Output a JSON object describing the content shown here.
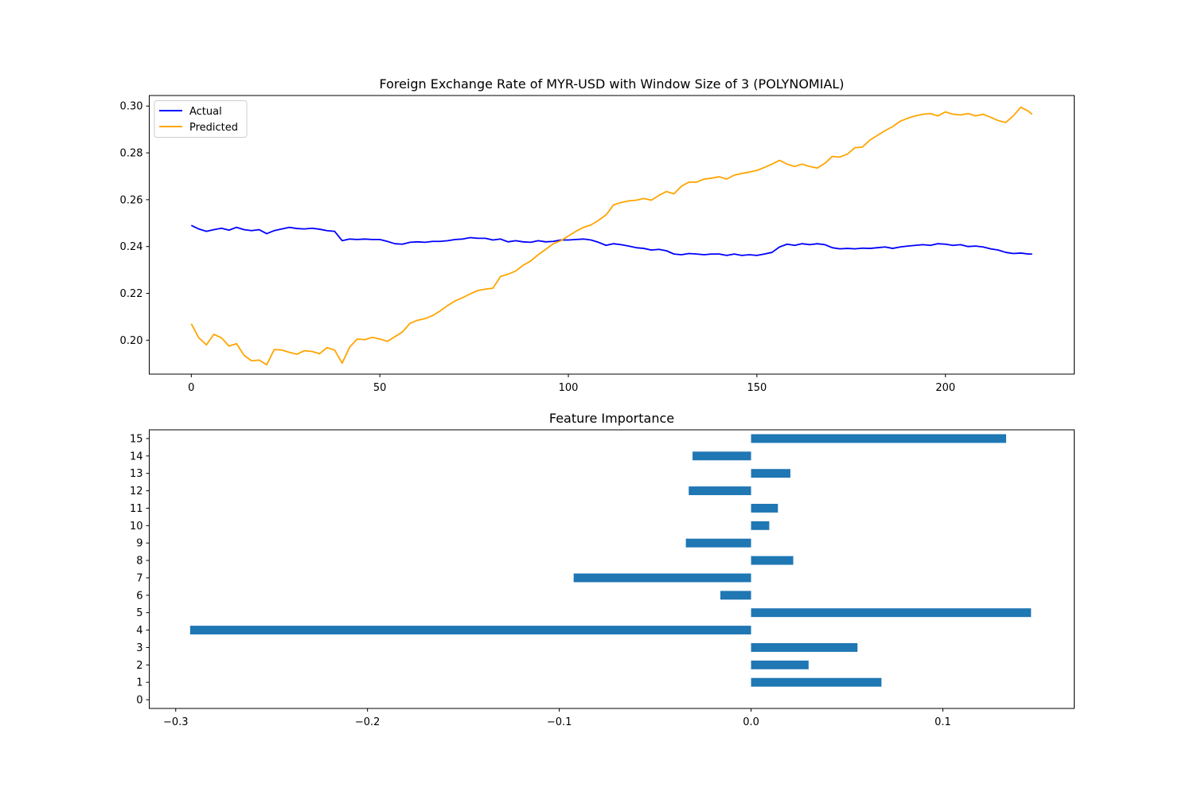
{
  "chart_data": [
    {
      "type": "line",
      "title": "Foreign Exchange Rate of MYR-USD with Window Size of 3 (POLYNOMIAL)",
      "xlabel": "",
      "ylabel": "",
      "xlim": [
        -11.15,
        234.15
      ],
      "ylim": [
        0.1855,
        0.3045
      ],
      "xticks": [
        0,
        50,
        100,
        150,
        200
      ],
      "xtick_labels": [
        "0",
        "50",
        "100",
        "150",
        "200"
      ],
      "yticks": [
        0.2,
        0.22,
        0.24,
        0.26,
        0.28,
        0.3
      ],
      "ytick_labels": [
        "0.20",
        "0.22",
        "0.24",
        "0.26",
        "0.28",
        "0.30"
      ],
      "legend_position": "top-left",
      "series": [
        {
          "name": "Actual",
          "color": "#0000ff",
          "x": [
            0,
            2,
            4,
            6,
            8,
            10,
            12,
            14,
            16,
            18,
            20,
            22,
            24,
            26,
            28,
            30,
            32,
            34,
            36,
            38,
            40,
            42,
            44,
            46,
            48,
            50,
            52,
            54,
            56,
            58,
            60,
            62,
            64,
            66,
            68,
            70,
            72,
            74,
            76,
            78,
            80,
            82,
            84,
            86,
            88,
            90,
            92,
            94,
            96,
            98,
            100,
            102,
            104,
            106,
            108,
            110,
            112,
            114,
            116,
            118,
            120,
            122,
            124,
            126,
            128,
            130,
            132,
            134,
            136,
            138,
            140,
            142,
            144,
            146,
            148,
            150,
            152,
            154,
            156,
            158,
            160,
            162,
            164,
            166,
            168,
            170,
            172,
            174,
            176,
            178,
            180,
            182,
            184,
            186,
            188,
            190,
            192,
            194,
            196,
            198,
            200,
            202,
            204,
            206,
            208,
            210,
            212,
            214,
            216,
            218,
            220,
            222,
            223
          ],
          "values": [
            0.249,
            0.2475,
            0.2465,
            0.2472,
            0.2478,
            0.247,
            0.2482,
            0.2472,
            0.2468,
            0.2472,
            0.2455,
            0.2468,
            0.2475,
            0.2482,
            0.2477,
            0.2475,
            0.2478,
            0.2474,
            0.2468,
            0.2465,
            0.2425,
            0.2432,
            0.243,
            0.2432,
            0.243,
            0.243,
            0.2422,
            0.2412,
            0.241,
            0.2418,
            0.242,
            0.2418,
            0.2422,
            0.2422,
            0.2425,
            0.243,
            0.2432,
            0.2438,
            0.2435,
            0.2435,
            0.2428,
            0.2432,
            0.242,
            0.2425,
            0.242,
            0.2418,
            0.2425,
            0.242,
            0.2422,
            0.2428,
            0.2428,
            0.243,
            0.2432,
            0.2428,
            0.2418,
            0.2405,
            0.2412,
            0.2408,
            0.2402,
            0.2395,
            0.2392,
            0.2385,
            0.2388,
            0.2382,
            0.2368,
            0.2365,
            0.237,
            0.2368,
            0.2365,
            0.2368,
            0.2368,
            0.2362,
            0.2368,
            0.2362,
            0.2365,
            0.2362,
            0.2368,
            0.2375,
            0.2398,
            0.241,
            0.2405,
            0.2412,
            0.2408,
            0.2412,
            0.2408,
            0.2395,
            0.239,
            0.2392,
            0.239,
            0.2393,
            0.2392,
            0.2395,
            0.2398,
            0.2392,
            0.2398,
            0.2402,
            0.2405,
            0.2408,
            0.2405,
            0.2412,
            0.241,
            0.2405,
            0.2408,
            0.24,
            0.2402,
            0.2398,
            0.239,
            0.2385,
            0.2375,
            0.237,
            0.2372,
            0.2368,
            0.2368
          ]
        },
        {
          "name": "Predicted",
          "color": "#ffa500",
          "x": [
            0,
            2,
            4,
            6,
            8,
            10,
            12,
            14,
            16,
            18,
            20,
            22,
            24,
            26,
            28,
            30,
            32,
            34,
            36,
            38,
            40,
            42,
            44,
            46,
            48,
            50,
            52,
            54,
            56,
            58,
            60,
            62,
            64,
            66,
            68,
            70,
            72,
            74,
            76,
            78,
            80,
            82,
            84,
            86,
            88,
            90,
            92,
            94,
            96,
            98,
            100,
            102,
            104,
            106,
            108,
            110,
            112,
            114,
            116,
            118,
            120,
            122,
            124,
            126,
            128,
            130,
            132,
            134,
            136,
            138,
            140,
            142,
            144,
            146,
            148,
            150,
            152,
            154,
            156,
            158,
            160,
            162,
            164,
            166,
            168,
            170,
            172,
            174,
            176,
            178,
            180,
            182,
            184,
            186,
            188,
            190,
            192,
            194,
            196,
            198,
            200,
            202,
            204,
            206,
            208,
            210,
            212,
            214,
            216,
            218,
            220,
            222,
            223
          ],
          "values": [
            0.207,
            0.201,
            0.198,
            0.2025,
            0.201,
            0.1975,
            0.1985,
            0.1935,
            0.1912,
            0.1915,
            0.1895,
            0.196,
            0.1958,
            0.1948,
            0.194,
            0.1955,
            0.1952,
            0.1942,
            0.1968,
            0.1958,
            0.1902,
            0.197,
            0.2005,
            0.2002,
            0.2012,
            0.2005,
            0.1995,
            0.2015,
            0.2035,
            0.2072,
            0.2085,
            0.2092,
            0.2105,
            0.2125,
            0.2148,
            0.2168,
            0.2182,
            0.2198,
            0.2212,
            0.2218,
            0.2222,
            0.2272,
            0.2282,
            0.2295,
            0.232,
            0.2338,
            0.2365,
            0.2388,
            0.2412,
            0.2425,
            0.2445,
            0.2465,
            0.2482,
            0.2492,
            0.2512,
            0.2535,
            0.2578,
            0.2588,
            0.2595,
            0.2598,
            0.2605,
            0.2598,
            0.2618,
            0.2635,
            0.2625,
            0.2658,
            0.2675,
            0.2675,
            0.2688,
            0.2692,
            0.2698,
            0.2688,
            0.2705,
            0.2712,
            0.2718,
            0.2725,
            0.2738,
            0.2752,
            0.2768,
            0.2752,
            0.2742,
            0.2752,
            0.2742,
            0.2735,
            0.2755,
            0.2785,
            0.2782,
            0.2795,
            0.2822,
            0.2825,
            0.2855,
            0.2875,
            0.2895,
            0.2912,
            0.2935,
            0.2948,
            0.2958,
            0.2965,
            0.2968,
            0.2958,
            0.2975,
            0.2965,
            0.2962,
            0.2968,
            0.2958,
            0.2965,
            0.2952,
            0.2938,
            0.293,
            0.2958,
            0.2995,
            0.2978,
            0.2965
          ]
        }
      ]
    },
    {
      "type": "bar",
      "orientation": "horizontal",
      "title": "Feature Importance",
      "xlabel": "",
      "ylabel": "",
      "xlim": [
        -0.3138,
        0.1685
      ],
      "xticks": [
        -0.3,
        -0.2,
        -0.1,
        0.0,
        0.1
      ],
      "xtick_labels": [
        "−0.3",
        "−0.2",
        "−0.1",
        "0.0",
        "0.1"
      ],
      "categories": [
        "0",
        "1",
        "2",
        "3",
        "4",
        "5",
        "6",
        "7",
        "8",
        "9",
        "10",
        "11",
        "12",
        "13",
        "14",
        "15"
      ],
      "values": [
        0.0,
        0.068,
        0.03,
        0.0555,
        -0.2925,
        0.146,
        -0.016,
        -0.0925,
        0.022,
        -0.034,
        0.0095,
        0.014,
        -0.0325,
        0.0205,
        -0.0305,
        0.133
      ],
      "color": "#1f77b4"
    }
  ]
}
